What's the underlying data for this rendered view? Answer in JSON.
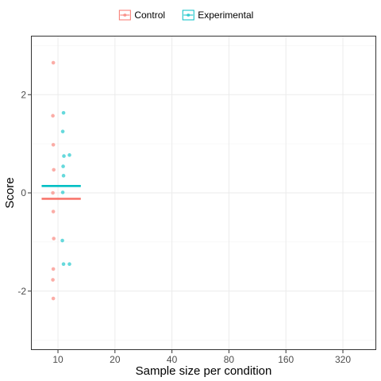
{
  "chart_data": {
    "type": "scatter",
    "xlabel": "Sample size per condition",
    "ylabel": "Score",
    "x_categories": [
      "10",
      "20",
      "40",
      "80",
      "160",
      "320"
    ],
    "x_scale": "log2",
    "xlim": [
      7.2,
      480
    ],
    "ylim": [
      -3.2,
      3.2
    ],
    "y_ticks": [
      -2,
      0,
      2
    ],
    "y_tick_labels": [
      "-2",
      "0",
      "2"
    ],
    "grid": true,
    "legend_position": "top",
    "series": [
      {
        "name": "Control",
        "color": "#F8766D",
        "mean": -0.12,
        "mean_segment_x": [
          8.2,
          13.2
        ],
        "points": [
          {
            "x": 9.45,
            "y": 2.65
          },
          {
            "x": 9.4,
            "y": 1.57
          },
          {
            "x": 9.45,
            "y": 0.98
          },
          {
            "x": 9.5,
            "y": 0.47
          },
          {
            "x": 9.4,
            "y": 0.0
          },
          {
            "x": 9.45,
            "y": -0.38
          },
          {
            "x": 9.5,
            "y": -0.93
          },
          {
            "x": 9.45,
            "y": -1.55
          },
          {
            "x": 9.4,
            "y": -1.77
          },
          {
            "x": 9.45,
            "y": -2.15
          }
        ]
      },
      {
        "name": "Experimental",
        "color": "#00BFC4",
        "mean": 0.14,
        "mean_segment_x": [
          8.2,
          13.2
        ],
        "points": [
          {
            "x": 10.7,
            "y": 1.63
          },
          {
            "x": 10.6,
            "y": 1.25
          },
          {
            "x": 11.5,
            "y": 0.77
          },
          {
            "x": 10.75,
            "y": 0.75
          },
          {
            "x": 10.65,
            "y": 0.54
          },
          {
            "x": 10.7,
            "y": 0.35
          },
          {
            "x": 10.6,
            "y": 0.01
          },
          {
            "x": 10.55,
            "y": -0.97
          },
          {
            "x": 10.7,
            "y": -1.45
          },
          {
            "x": 11.5,
            "y": -1.45
          }
        ]
      }
    ]
  }
}
